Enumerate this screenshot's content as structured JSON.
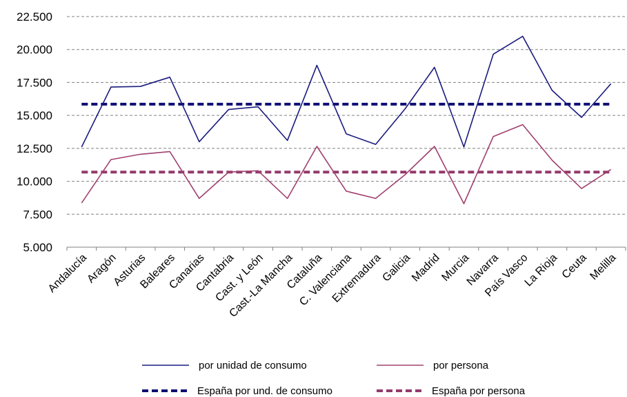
{
  "chart_data": {
    "type": "line",
    "title": "",
    "xlabel": "",
    "ylabel": "",
    "ylim": [
      5000,
      22500
    ],
    "yticks": [
      5000,
      7500,
      10000,
      12500,
      15000,
      17500,
      20000,
      22500
    ],
    "ytick_labels": [
      "5.000",
      "7.500",
      "10.000",
      "12.500",
      "15.000",
      "17.500",
      "20.000",
      "22.500"
    ],
    "grid": "horizontal dashed",
    "legend_position": "bottom",
    "categories": [
      "Andalucía",
      "Aragón",
      "Asturias",
      "Baleares",
      "Canarias",
      "Cantabria",
      "Cast. y León",
      "Cast.-La Mancha",
      "Cataluña",
      "C. Valenciana",
      "Extremadura",
      "Galicia",
      "Madrid",
      "Murcia",
      "Navarra",
      "País Vasco",
      "La Rioja",
      "Ceuta",
      "Melilla"
    ],
    "series": [
      {
        "name": "por unidad de consumo",
        "color": "#1a1a80",
        "style": "solid",
        "values": [
          12600,
          17150,
          17200,
          17900,
          13000,
          15450,
          15650,
          13100,
          18800,
          13600,
          12800,
          15500,
          18650,
          12600,
          19650,
          21000,
          16900,
          14850,
          17400
        ]
      },
      {
        "name": "por persona",
        "color": "#a0406e",
        "style": "solid",
        "values": [
          8350,
          11650,
          12050,
          12250,
          8700,
          10700,
          10800,
          8700,
          12650,
          9250,
          8700,
          10500,
          12650,
          8300,
          13400,
          14300,
          11600,
          9450,
          10900
        ]
      },
      {
        "name": "España por und. de consumo",
        "color": "#0d0d73",
        "style": "dashed",
        "values": [
          15850,
          15850,
          15850,
          15850,
          15850,
          15850,
          15850,
          15850,
          15850,
          15850,
          15850,
          15850,
          15850,
          15850,
          15850,
          15850,
          15850,
          15850,
          15850
        ]
      },
      {
        "name": "España por persona",
        "color": "#93396a",
        "style": "dashed",
        "values": [
          10700,
          10700,
          10700,
          10700,
          10700,
          10700,
          10700,
          10700,
          10700,
          10700,
          10700,
          10700,
          10700,
          10700,
          10700,
          10700,
          10700,
          10700,
          10700
        ]
      }
    ]
  }
}
